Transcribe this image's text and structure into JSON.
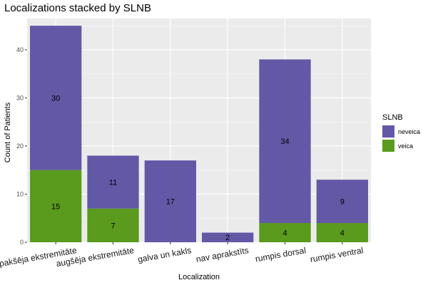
{
  "chart_data": {
    "type": "bar",
    "stacked": true,
    "title": "Localizations stacked by SLNB",
    "xlabel": "Localization",
    "ylabel": "Count of Patients",
    "categories": [
      "apakšēja ekstremitāte",
      "augšēja ekstremitāte",
      "galva un kakls",
      "nav aprakstīts",
      "rumpis dorsal",
      "rumpis ventral"
    ],
    "series": [
      {
        "name": "veica",
        "color": "#5a9a1d",
        "values": [
          15,
          7,
          0,
          0,
          4,
          4
        ]
      },
      {
        "name": "neveica",
        "color": "#6258a6",
        "values": [
          30,
          11,
          17,
          2,
          34,
          9
        ]
      }
    ],
    "ylim": [
      0,
      46.5
    ],
    "yticks": [
      0,
      10,
      20,
      30,
      40
    ],
    "grid": true,
    "legend": {
      "title": "SLNB",
      "placement": "right",
      "entries": [
        "neveica",
        "veica"
      ]
    }
  }
}
